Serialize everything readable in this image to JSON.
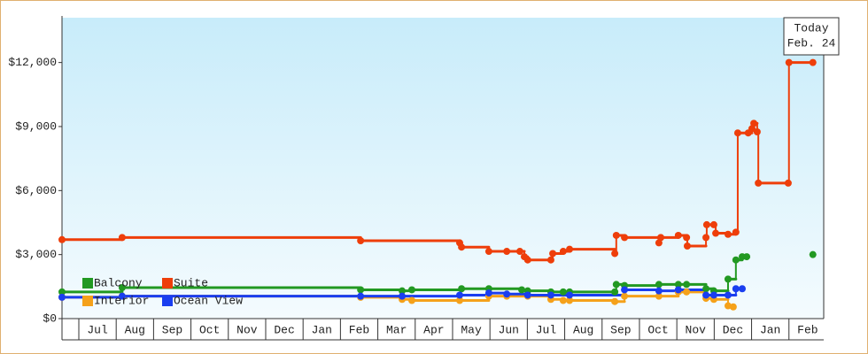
{
  "chart_data": {
    "type": "step-line",
    "annotation": {
      "label": "Today",
      "date": "Feb. 24"
    },
    "xlim": [
      -0.45,
      19.93
    ],
    "xticks": [
      {
        "value": 0.5,
        "label": "Jul"
      },
      {
        "value": 1.5,
        "label": "Aug"
      },
      {
        "value": 2.5,
        "label": "Sep"
      },
      {
        "value": 3.5,
        "label": "Oct"
      },
      {
        "value": 4.5,
        "label": "Nov"
      },
      {
        "value": 5.5,
        "label": "Dec"
      },
      {
        "value": 6.5,
        "label": "Jan"
      },
      {
        "value": 7.5,
        "label": "Feb"
      },
      {
        "value": 8.5,
        "label": "Mar"
      },
      {
        "value": 9.5,
        "label": "Apr"
      },
      {
        "value": 10.5,
        "label": "May"
      },
      {
        "value": 11.5,
        "label": "Jun"
      },
      {
        "value": 12.5,
        "label": "Jul"
      },
      {
        "value": 13.5,
        "label": "Aug"
      },
      {
        "value": 14.5,
        "label": "Sep"
      },
      {
        "value": 15.5,
        "label": "Oct"
      },
      {
        "value": 16.5,
        "label": "Nov"
      },
      {
        "value": 17.5,
        "label": "Dec"
      },
      {
        "value": 18.5,
        "label": "Jan"
      },
      {
        "value": 19.5,
        "label": "Feb"
      }
    ],
    "ylim": [
      0,
      14100
    ],
    "yticks": [
      {
        "value": 0,
        "label": "$0"
      },
      {
        "value": 3000,
        "label": "$3,000"
      },
      {
        "value": 6000,
        "label": "$6,000"
      },
      {
        "value": 9000,
        "label": "$9,000"
      },
      {
        "value": 12000,
        "label": "$12,000"
      }
    ],
    "grid": false,
    "legend": "lower-left",
    "series": [
      {
        "name": "Balcony",
        "color": "#229922",
        "x": [
          -0.45,
          1.16,
          7.54,
          8.65,
          8.91,
          10.24,
          10.97,
          11.85,
          12.01,
          12.63,
          12.96,
          13.13,
          14.34,
          14.38,
          14.6,
          15.52,
          16.04,
          16.26,
          16.78,
          16.99,
          17.37,
          17.58,
          17.75,
          17.87,
          18.5,
          19.64
        ],
        "values": [
          1250,
          1450,
          1350,
          1300,
          1350,
          1400,
          1400,
          1350,
          1300,
          1250,
          1250,
          1250,
          1250,
          1600,
          1550,
          1600,
          1600,
          1600,
          1400,
          1300,
          1850,
          2750,
          2900,
          2900,
          null,
          3000
        ]
      },
      {
        "name": "Suite",
        "color": "#ee3e0a",
        "x": [
          -0.45,
          1.16,
          7.54,
          10.19,
          10.24,
          10.97,
          11.45,
          11.8,
          11.92,
          12.01,
          12.63,
          12.68,
          12.96,
          13.13,
          14.34,
          14.38,
          14.6,
          15.52,
          15.57,
          16.04,
          16.26,
          16.28,
          16.78,
          16.8,
          16.99,
          17.04,
          17.37,
          17.58,
          17.63,
          17.91,
          18.01,
          18.06,
          18.15,
          18.18,
          18.98,
          19.0,
          19.64
        ],
        "values": [
          3700,
          3800,
          3650,
          3550,
          3350,
          3150,
          3150,
          3150,
          2900,
          2750,
          2750,
          3050,
          3150,
          3250,
          3050,
          3900,
          3800,
          3550,
          3800,
          3900,
          3800,
          3400,
          3800,
          4400,
          4400,
          4000,
          3950,
          4050,
          8700,
          8700,
          8900,
          9150,
          8750,
          6350,
          6350,
          12000,
          12000
        ]
      },
      {
        "name": "Interior",
        "color": "#f5a11a",
        "x": [
          -0.45,
          1.16,
          7.54,
          8.65,
          8.91,
          10.19,
          10.97,
          11.45,
          12.01,
          12.63,
          12.96,
          13.13,
          14.34,
          14.6,
          15.52,
          16.04,
          16.26,
          16.78,
          16.99,
          17.37,
          17.51
        ],
        "values": [
          1000,
          1050,
          1000,
          900,
          850,
          850,
          1050,
          1050,
          1050,
          900,
          850,
          850,
          800,
          1050,
          1050,
          1250,
          1250,
          950,
          900,
          600,
          550
        ]
      },
      {
        "name": "Ocean View",
        "color": "#1a3ef0",
        "x": [
          -0.45,
          1.16,
          7.54,
          8.65,
          10.19,
          10.97,
          11.45,
          12.01,
          12.63,
          13.13,
          14.6,
          15.52,
          16.04,
          16.78,
          16.99,
          17.37,
          17.58,
          17.75
        ],
        "values": [
          1000,
          1050,
          1050,
          1050,
          1100,
          1200,
          1150,
          1100,
          1100,
          1100,
          1350,
          1300,
          1350,
          1100,
          1100,
          1100,
          1400,
          1400
        ]
      }
    ]
  }
}
